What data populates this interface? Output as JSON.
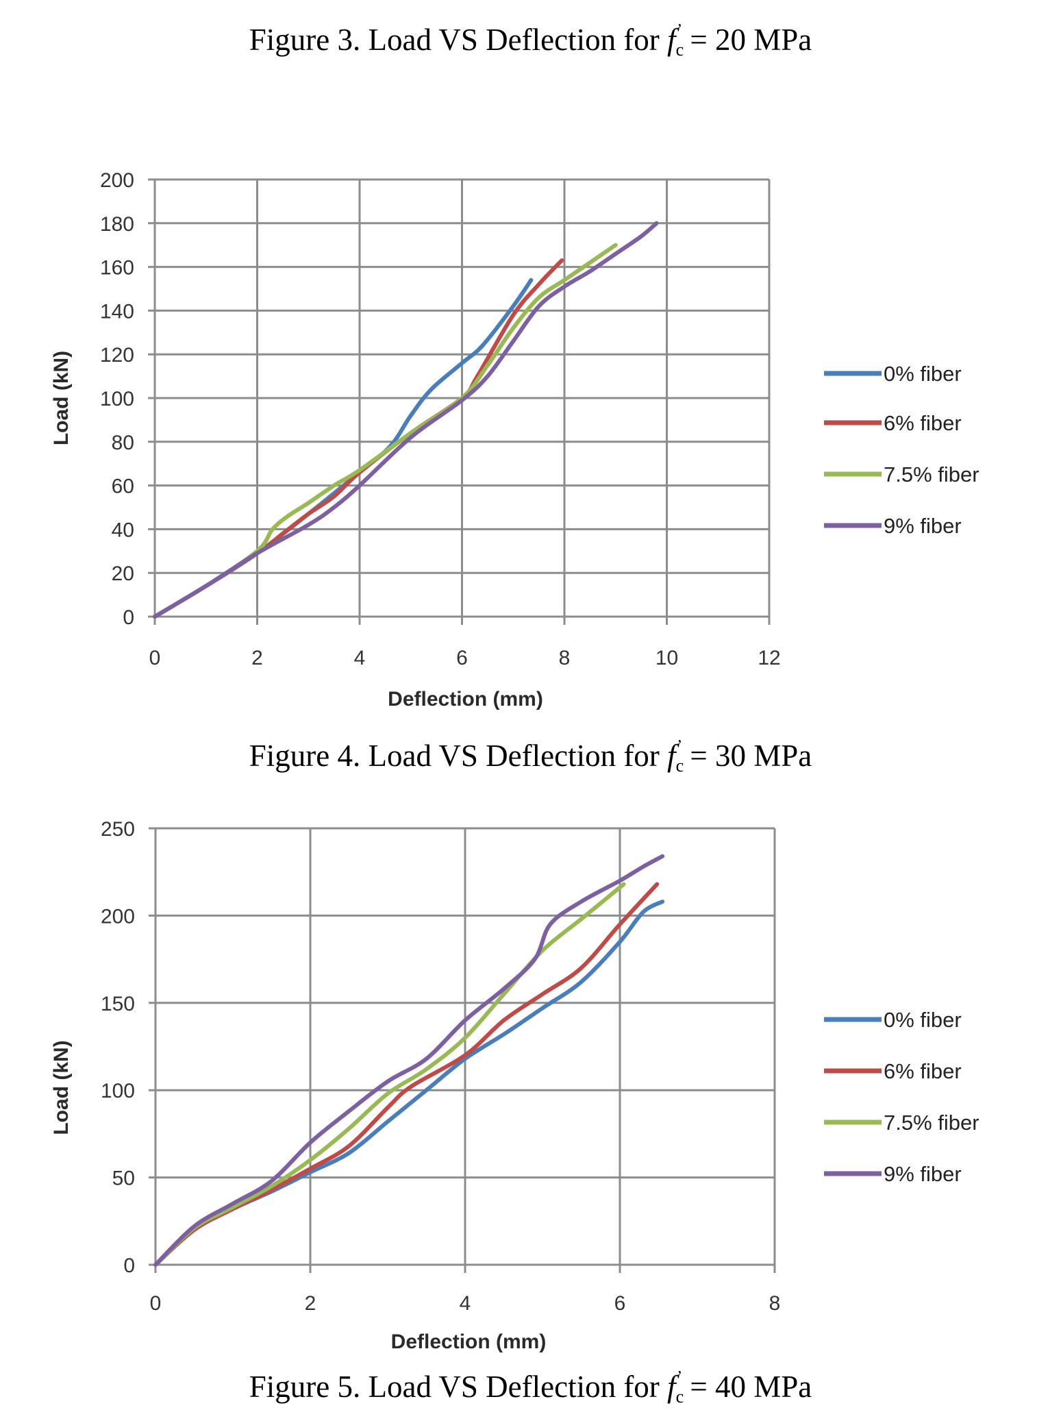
{
  "captions": {
    "fig3": {
      "prefix": "Figure 3. Load VS Deflection for ",
      "symbol": "f",
      "sub": "c",
      "sup": "’",
      "suffix": " = 20 MPa"
    },
    "fig4": {
      "prefix": "Figure 4. Load VS Deflection for ",
      "symbol": "f",
      "sub": "c",
      "sup": "’",
      "suffix": " = 30 MPa"
    },
    "fig5": {
      "prefix": "Figure 5. Load VS Deflection for ",
      "symbol": "f",
      "sub": "c",
      "sup": "’",
      "suffix": " = 40 MPa"
    }
  },
  "colors": {
    "0% fiber": "#4a7ebb",
    "6% fiber": "#be4b48",
    "7.5% fiber": "#98b954",
    "9% fiber": "#7d60a0",
    "grid": "#8c8c8c"
  },
  "chart_data": [
    {
      "type": "line",
      "title": "Figure 4. Load VS Deflection for fc' = 30 MPa",
      "xlabel": "Deflection (mm)",
      "ylabel": "Load (kN)",
      "xlim": [
        0,
        12
      ],
      "ylim": [
        0,
        200
      ],
      "xticks": [
        0,
        2,
        4,
        6,
        8,
        10,
        12
      ],
      "yticks": [
        0,
        20,
        40,
        60,
        80,
        100,
        120,
        140,
        160,
        180,
        200
      ],
      "grid": true,
      "legend_position": "right",
      "series": [
        {
          "name": "0% fiber",
          "x": [
            0,
            1,
            2,
            3,
            4,
            4.6,
            5,
            5.4,
            6,
            6.4,
            7,
            7.35
          ],
          "y": [
            0,
            14,
            29,
            47,
            66,
            78,
            92,
            104,
            116,
            124,
            142,
            154
          ]
        },
        {
          "name": "6% fiber",
          "x": [
            0,
            1,
            2,
            2.5,
            3,
            3.5,
            4,
            5,
            6,
            6.3,
            7,
            7.5,
            7.95
          ],
          "y": [
            0,
            14,
            29,
            38,
            47,
            55,
            66,
            84,
            100,
            110,
            138,
            152,
            163
          ]
        },
        {
          "name": "7.5% fiber",
          "x": [
            0,
            1,
            2,
            2.3,
            2.6,
            3,
            3.5,
            4,
            5,
            6,
            6.5,
            7,
            7.5,
            8,
            8.5,
            9
          ],
          "y": [
            0,
            14,
            30,
            40,
            46,
            52,
            60,
            67,
            84,
            100,
            115,
            132,
            146,
            154,
            162,
            170
          ]
        },
        {
          "name": "9% fiber",
          "x": [
            0,
            1,
            2,
            3,
            3.5,
            4,
            5,
            6,
            6.5,
            7,
            7.5,
            8,
            8.5,
            9,
            9.5,
            9.8
          ],
          "y": [
            0,
            14,
            29,
            42,
            50,
            60,
            82,
            99,
            110,
            126,
            142,
            151,
            158,
            166,
            174,
            180
          ]
        }
      ]
    },
    {
      "type": "line",
      "title": "Figure 5. Load VS Deflection for fc' = 40 MPa",
      "xlabel": "Deflection (mm)",
      "ylabel": "Load (kN)",
      "xlim": [
        0,
        8
      ],
      "ylim": [
        0,
        250
      ],
      "xticks": [
        0,
        2,
        4,
        6,
        8
      ],
      "yticks": [
        0,
        50,
        100,
        150,
        200,
        250
      ],
      "grid": true,
      "legend_position": "right",
      "series": [
        {
          "name": "0% fiber",
          "x": [
            0,
            0.5,
            1,
            1.5,
            2,
            2.5,
            3,
            3.5,
            4,
            4.5,
            5,
            5.5,
            6,
            6.3,
            6.55
          ],
          "y": [
            0,
            20,
            32,
            42,
            53,
            64,
            82,
            100,
            118,
            132,
            147,
            162,
            185,
            202,
            208
          ]
        },
        {
          "name": "6% fiber",
          "x": [
            0,
            0.5,
            1,
            1.5,
            2,
            2.5,
            3,
            3.3,
            4,
            4.5,
            5,
            5.5,
            6,
            6.48
          ],
          "y": [
            0,
            20,
            32,
            43,
            55,
            68,
            90,
            102,
            120,
            140,
            155,
            170,
            195,
            218
          ]
        },
        {
          "name": "7.5% fiber",
          "x": [
            0,
            0.5,
            1,
            1.5,
            2,
            2.5,
            3,
            3.5,
            4,
            4.5,
            5,
            5.5,
            6.05
          ],
          "y": [
            0,
            21,
            33,
            45,
            60,
            78,
            98,
            112,
            130,
            155,
            180,
            198,
            218
          ]
        },
        {
          "name": "9% fiber",
          "x": [
            0,
            0.5,
            1,
            1.5,
            2,
            2.5,
            3,
            3.5,
            4,
            4.5,
            4.9,
            5.1,
            5.5,
            6,
            6.3,
            6.55
          ],
          "y": [
            0,
            22,
            35,
            48,
            70,
            88,
            105,
            118,
            140,
            158,
            175,
            195,
            208,
            220,
            228,
            234
          ]
        }
      ]
    }
  ]
}
